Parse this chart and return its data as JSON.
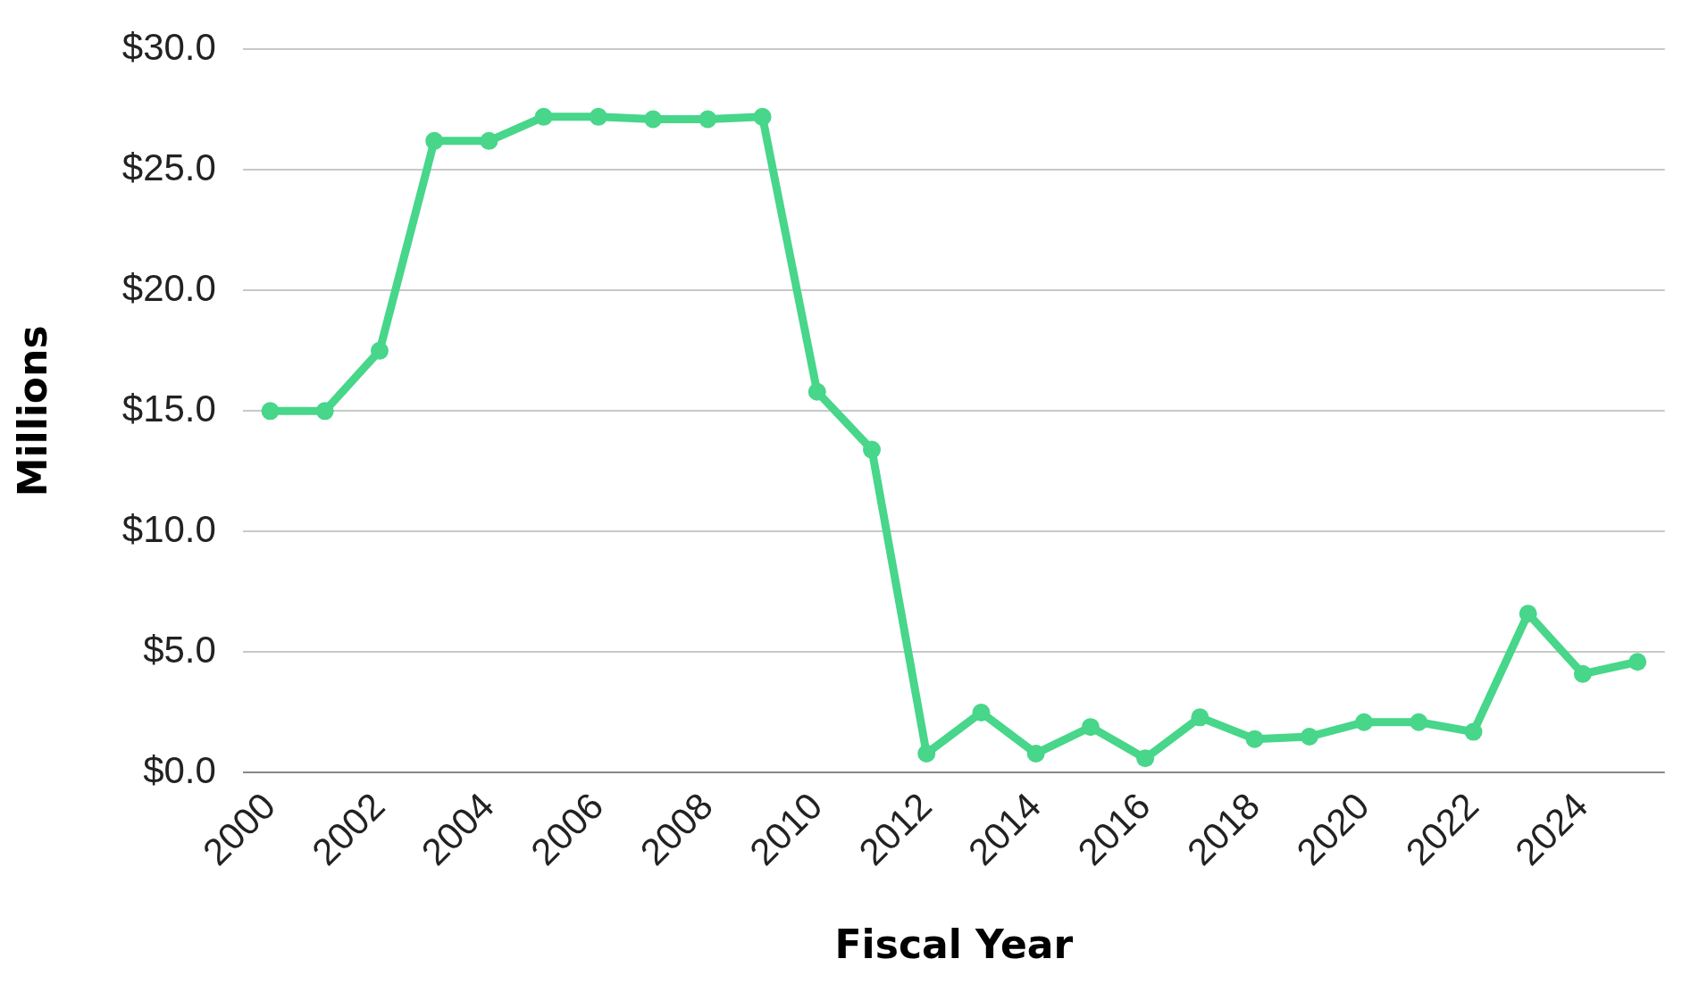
{
  "chart_data": {
    "type": "line",
    "xlabel": "Fiscal Year",
    "ylabel": "Millions",
    "categories": [
      "2000",
      null,
      "2002",
      null,
      "2004",
      null,
      "2006",
      null,
      "2008",
      null,
      "2010",
      null,
      "2012",
      null,
      "2014",
      null,
      "2016",
      null,
      "2018",
      null,
      "2020",
      null,
      "2022",
      null,
      "2024",
      null
    ],
    "series": [
      {
        "color": "#47d68a",
        "values": [
          15.0,
          15.0,
          17.5,
          26.2,
          26.2,
          27.2,
          27.2,
          27.1,
          27.1,
          27.2,
          15.8,
          13.4,
          0.8,
          2.5,
          0.8,
          1.9,
          0.6,
          2.3,
          1.4,
          1.5,
          2.1,
          2.1,
          1.7,
          6.6,
          4.1,
          4.6
        ]
      }
    ],
    "ylim": [
      0,
      30
    ],
    "yticks": [
      {
        "value": 0,
        "label": "$0.0"
      },
      {
        "value": 5,
        "label": "$5.0"
      },
      {
        "value": 10,
        "label": "$10.0"
      },
      {
        "value": 15,
        "label": "$15.0"
      },
      {
        "value": 20,
        "label": "$20.0"
      },
      {
        "value": 25,
        "label": "$25.0"
      },
      {
        "value": 30,
        "label": "$30.0"
      }
    ],
    "grid": "y",
    "legend": false,
    "marker": "circle",
    "line_style": "solid"
  }
}
